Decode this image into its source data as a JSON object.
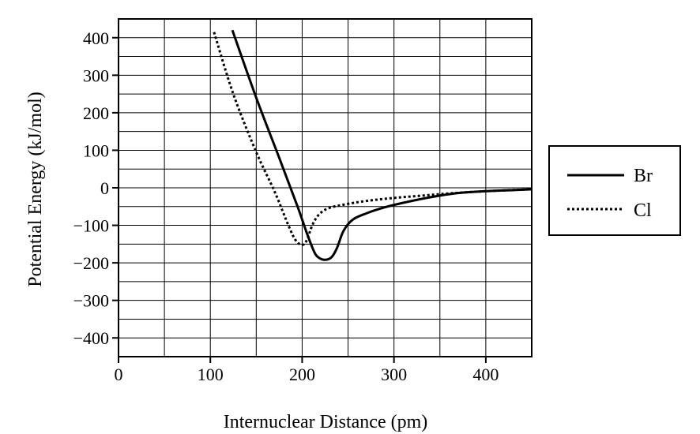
{
  "chart_data": {
    "type": "line",
    "xlabel": "Internuclear Distance (pm)",
    "ylabel": "Potential Energy (kJ/mol)",
    "xlim": [
      0,
      450
    ],
    "ylim": [
      -450,
      450
    ],
    "x_ticks": [
      0,
      100,
      200,
      300,
      400
    ],
    "y_ticks": [
      -400,
      -300,
      -200,
      -100,
      0,
      100,
      200,
      300,
      400
    ],
    "x_tick_labels": [
      "0",
      "100",
      "200",
      "300",
      "400"
    ],
    "y_tick_labels": [
      "−400",
      "−300",
      "−200",
      "−100",
      "0",
      "100",
      "200",
      "300",
      "400"
    ],
    "grid": true,
    "legend_position": "right",
    "series": [
      {
        "name": "Br",
        "style": "solid",
        "color": "#000000",
        "points": [
          [
            124,
            420
          ],
          [
            150,
            240
          ],
          [
            175,
            80
          ],
          [
            195,
            -50
          ],
          [
            205,
            -120
          ],
          [
            213,
            -170
          ],
          [
            218,
            -186
          ],
          [
            225,
            -192
          ],
          [
            232,
            -185
          ],
          [
            238,
            -160
          ],
          [
            245,
            -115
          ],
          [
            255,
            -85
          ],
          [
            270,
            -68
          ],
          [
            290,
            -52
          ],
          [
            310,
            -40
          ],
          [
            340,
            -25
          ],
          [
            370,
            -14
          ],
          [
            400,
            -9
          ],
          [
            430,
            -6
          ],
          [
            450,
            -4
          ]
        ]
      },
      {
        "name": "Cl",
        "style": "dotted",
        "color": "#000000",
        "points": [
          [
            104,
            415
          ],
          [
            125,
            250
          ],
          [
            150,
            95
          ],
          [
            170,
            -10
          ],
          [
            185,
            -100
          ],
          [
            193,
            -140
          ],
          [
            200,
            -152
          ],
          [
            205,
            -140
          ],
          [
            211,
            -100
          ],
          [
            218,
            -72
          ],
          [
            228,
            -55
          ],
          [
            245,
            -45
          ],
          [
            270,
            -35
          ],
          [
            300,
            -27
          ],
          [
            330,
            -21
          ],
          [
            360,
            -15
          ],
          [
            400,
            -9
          ],
          [
            450,
            -4
          ]
        ]
      }
    ]
  }
}
